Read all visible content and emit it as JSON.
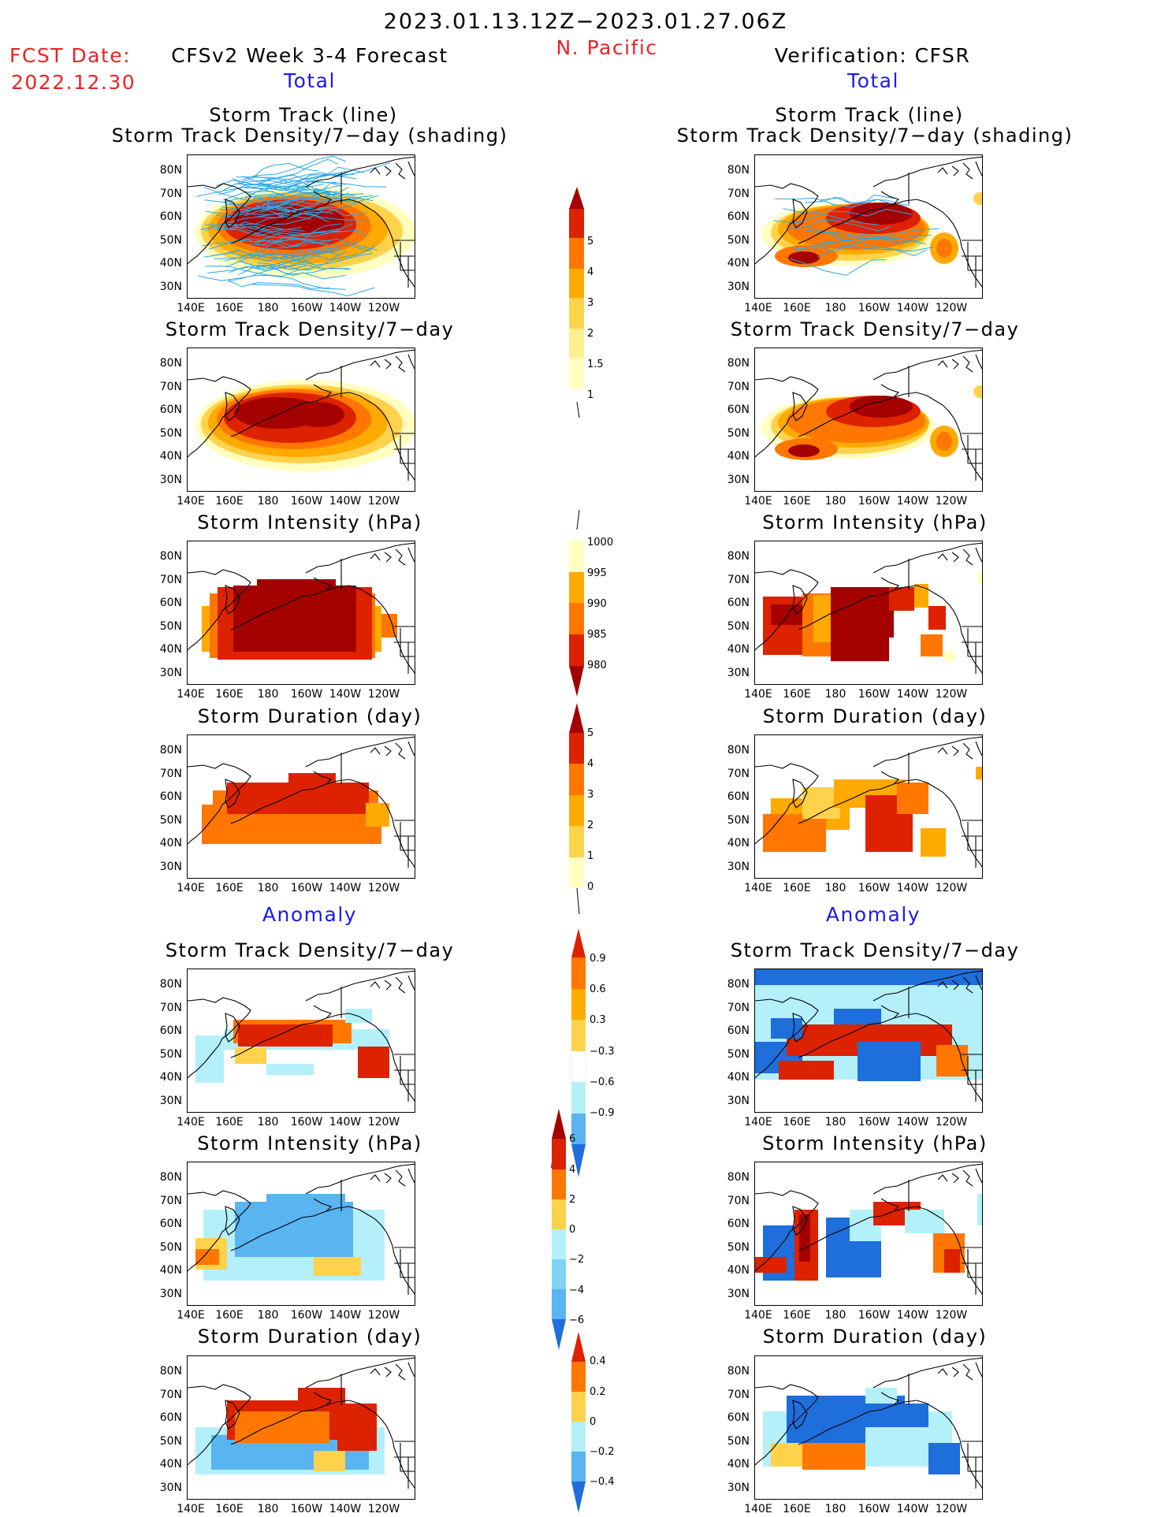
{
  "header": {
    "date_range": "2023.01.13.12Z−2023.01.27.06Z",
    "region": "N. Pacific",
    "fcst_label": "FCST Date:",
    "fcst_date": "2022.12.30",
    "left_heading": "CFSv2 Week 3-4 Forecast",
    "right_heading": "Verification: CFSR",
    "total_label": "Total",
    "anomaly_label": "Anomaly"
  },
  "panel_titles": {
    "track_line": "Storm Track (line)",
    "track_shading": "Storm Track Density/7−day (shading)",
    "density": "Storm Track Density/7−day",
    "intensity": "Storm Intensity (hPa)",
    "duration": "Storm Duration (day)"
  },
  "axes": {
    "lat_ticks": [
      "80N",
      "70N",
      "60N",
      "50N",
      "40N",
      "30N"
    ],
    "lon_ticks": [
      "140E",
      "160E",
      "180",
      "160W",
      "140W",
      "120W"
    ]
  },
  "colorbars": {
    "density": [
      "5",
      "4",
      "3",
      "2",
      "1.5",
      "1"
    ],
    "intensity": [
      "1000",
      "995",
      "990",
      "985",
      "980"
    ],
    "duration": [
      "5",
      "4",
      "3",
      "2",
      "1",
      "0"
    ],
    "density_anom": [
      "0.9",
      "0.6",
      "0.3",
      "−0.3",
      "−0.6",
      "−0.9"
    ],
    "intensity_anom": [
      "6",
      "4",
      "2",
      "0",
      "−2",
      "−4",
      "−6"
    ],
    "duration_anom": [
      "0.4",
      "0.2",
      "0",
      "−0.2",
      "−0.4"
    ]
  },
  "colors": {
    "darkred": "#a50000",
    "red": "#dd2200",
    "orange": "#ff7700",
    "lightorange": "#ffaa00",
    "yellow": "#ffd24c",
    "paleyellow": "#ffffc0",
    "lightblue": "#b4f0fa",
    "skyblue": "#5ab4f0",
    "blue": "#1e6edc",
    "track_line": "#2aa8e8"
  }
}
